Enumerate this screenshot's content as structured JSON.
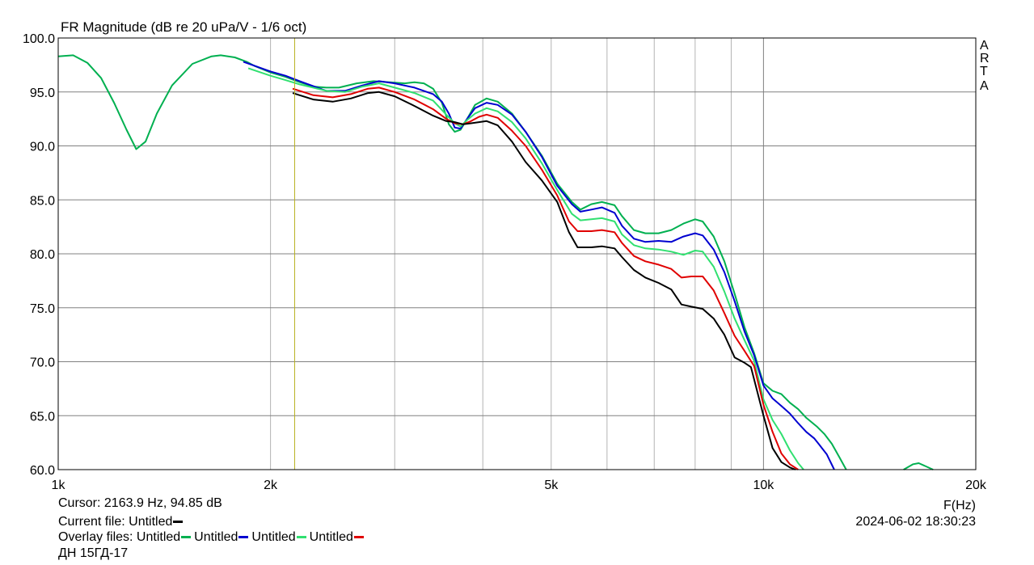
{
  "chart_data": {
    "type": "line",
    "title": "FR Magnitude (dB re 20 uPa/V - 1/6 oct)",
    "xlabel": "F(Hz)",
    "xscale": "log",
    "xlim": [
      1000,
      20000
    ],
    "ylim": [
      60,
      100
    ],
    "x_ticks": [
      {
        "value": 1000,
        "label": "1k"
      },
      {
        "value": 2000,
        "label": "2k"
      },
      {
        "value": 5000,
        "label": "5k"
      },
      {
        "value": 10000,
        "label": "10k"
      },
      {
        "value": 20000,
        "label": "20k"
      }
    ],
    "y_ticks": [
      {
        "value": 100,
        "label": "100.0"
      },
      {
        "value": 95,
        "label": "95.0"
      },
      {
        "value": 90,
        "label": "90.0"
      },
      {
        "value": 85,
        "label": "85.0"
      },
      {
        "value": 80,
        "label": "80.0"
      },
      {
        "value": 75,
        "label": "75.0"
      },
      {
        "value": 70,
        "label": "70.0"
      },
      {
        "value": 65,
        "label": "65.0"
      },
      {
        "value": 60,
        "label": "60.0"
      }
    ],
    "grid": true,
    "cursor": {
      "x": 2163.9,
      "y": 94.85
    },
    "series": [
      {
        "name": "Untitled",
        "color": "#00b050",
        "points": [
          [
            1000,
            98.3
          ],
          [
            1050,
            98.4
          ],
          [
            1100,
            97.7
          ],
          [
            1150,
            96.3
          ],
          [
            1200,
            94.0
          ],
          [
            1250,
            91.5
          ],
          [
            1290,
            89.7
          ],
          [
            1330,
            90.4
          ],
          [
            1380,
            93.0
          ],
          [
            1450,
            95.6
          ],
          [
            1550,
            97.6
          ],
          [
            1650,
            98.3
          ],
          [
            1700,
            98.4
          ],
          [
            1780,
            98.2
          ],
          [
            1850,
            97.8
          ],
          [
            1900,
            97.4
          ],
          [
            2000,
            96.8
          ],
          [
            2100,
            96.4
          ],
          [
            2200,
            95.9
          ],
          [
            2300,
            95.5
          ],
          [
            2400,
            95.4
          ],
          [
            2500,
            95.4
          ],
          [
            2650,
            95.8
          ],
          [
            2800,
            96.0
          ],
          [
            2950,
            95.9
          ],
          [
            3100,
            95.8
          ],
          [
            3200,
            95.9
          ],
          [
            3300,
            95.8
          ],
          [
            3400,
            95.3
          ],
          [
            3500,
            94.0
          ],
          [
            3580,
            92.0
          ],
          [
            3650,
            91.3
          ],
          [
            3720,
            91.5
          ],
          [
            3800,
            92.5
          ],
          [
            3900,
            93.8
          ],
          [
            4050,
            94.4
          ],
          [
            4200,
            94.1
          ],
          [
            4400,
            93.0
          ],
          [
            4600,
            91.3
          ],
          [
            4850,
            89.1
          ],
          [
            5100,
            86.5
          ],
          [
            5350,
            84.8
          ],
          [
            5500,
            84.1
          ],
          [
            5700,
            84.6
          ],
          [
            5900,
            84.8
          ],
          [
            6150,
            84.5
          ],
          [
            6300,
            83.5
          ],
          [
            6550,
            82.2
          ],
          [
            6800,
            81.9
          ],
          [
            7100,
            81.9
          ],
          [
            7400,
            82.2
          ],
          [
            7700,
            82.8
          ],
          [
            8000,
            83.2
          ],
          [
            8200,
            83.0
          ],
          [
            8500,
            81.6
          ],
          [
            8800,
            79.3
          ],
          [
            9100,
            76.3
          ],
          [
            9400,
            73.2
          ],
          [
            9700,
            70.8
          ],
          [
            10000,
            68.0
          ],
          [
            10300,
            67.3
          ],
          [
            10600,
            67.0
          ],
          [
            10900,
            66.2
          ],
          [
            11200,
            65.6
          ],
          [
            11500,
            64.8
          ],
          [
            11900,
            64.0
          ],
          [
            12200,
            63.3
          ],
          [
            12500,
            62.4
          ],
          [
            12800,
            61.2
          ],
          [
            13100,
            60.0
          ]
        ]
      },
      {
        "name": "Untitled",
        "color": "#0000d0",
        "points": [
          [
            1830,
            97.8
          ],
          [
            2000,
            96.9
          ],
          [
            2100,
            96.5
          ],
          [
            2200,
            96.0
          ],
          [
            2400,
            95.1
          ],
          [
            2550,
            95.1
          ],
          [
            2700,
            95.6
          ],
          [
            2850,
            96.0
          ],
          [
            3000,
            95.8
          ],
          [
            3200,
            95.4
          ],
          [
            3400,
            94.8
          ],
          [
            3500,
            94.1
          ],
          [
            3580,
            93.0
          ],
          [
            3650,
            91.7
          ],
          [
            3720,
            91.6
          ],
          [
            3800,
            92.5
          ],
          [
            3900,
            93.5
          ],
          [
            4050,
            94.0
          ],
          [
            4200,
            93.8
          ],
          [
            4400,
            92.9
          ],
          [
            4600,
            91.3
          ],
          [
            4850,
            89.0
          ],
          [
            5100,
            86.3
          ],
          [
            5350,
            84.6
          ],
          [
            5500,
            83.9
          ],
          [
            5700,
            84.1
          ],
          [
            5900,
            84.3
          ],
          [
            6150,
            83.8
          ],
          [
            6300,
            82.6
          ],
          [
            6550,
            81.4
          ],
          [
            6800,
            81.1
          ],
          [
            7100,
            81.2
          ],
          [
            7400,
            81.1
          ],
          [
            7700,
            81.6
          ],
          [
            8000,
            81.9
          ],
          [
            8200,
            81.7
          ],
          [
            8500,
            80.4
          ],
          [
            8800,
            78.3
          ],
          [
            9100,
            75.6
          ],
          [
            9400,
            72.8
          ],
          [
            9700,
            70.6
          ],
          [
            10000,
            67.8
          ],
          [
            10300,
            66.6
          ],
          [
            10600,
            65.9
          ],
          [
            10900,
            65.2
          ],
          [
            11200,
            64.3
          ],
          [
            11500,
            63.5
          ],
          [
            11800,
            62.9
          ],
          [
            12000,
            62.3
          ],
          [
            12300,
            61.4
          ],
          [
            12600,
            60.0
          ]
        ]
      },
      {
        "name": "Untitled",
        "color": "#30e070",
        "points": [
          [
            1860,
            97.2
          ],
          [
            2000,
            96.5
          ],
          [
            2100,
            96.1
          ],
          [
            2200,
            95.7
          ],
          [
            2400,
            95.1
          ],
          [
            2550,
            95.0
          ],
          [
            2700,
            95.5
          ],
          [
            2850,
            95.8
          ],
          [
            3000,
            95.4
          ],
          [
            3200,
            94.9
          ],
          [
            3400,
            94.2
          ],
          [
            3550,
            92.9
          ],
          [
            3650,
            92.1
          ],
          [
            3720,
            91.8
          ],
          [
            3800,
            92.4
          ],
          [
            3900,
            93.0
          ],
          [
            4050,
            93.5
          ],
          [
            4200,
            93.2
          ],
          [
            4400,
            92.2
          ],
          [
            4600,
            90.7
          ],
          [
            4850,
            88.4
          ],
          [
            5100,
            85.9
          ],
          [
            5350,
            83.7
          ],
          [
            5500,
            83.1
          ],
          [
            5700,
            83.2
          ],
          [
            5900,
            83.3
          ],
          [
            6150,
            83.0
          ],
          [
            6300,
            81.8
          ],
          [
            6550,
            80.8
          ],
          [
            6800,
            80.5
          ],
          [
            7100,
            80.4
          ],
          [
            7400,
            80.2
          ],
          [
            7700,
            79.9
          ],
          [
            8000,
            80.3
          ],
          [
            8200,
            80.2
          ],
          [
            8500,
            78.8
          ],
          [
            8800,
            76.5
          ],
          [
            9100,
            74.0
          ],
          [
            9400,
            72.0
          ],
          [
            9700,
            70.1
          ],
          [
            10000,
            66.5
          ],
          [
            10300,
            64.6
          ],
          [
            10600,
            63.3
          ],
          [
            10900,
            61.8
          ],
          [
            11200,
            60.6
          ],
          [
            11400,
            60.0
          ]
        ]
      },
      {
        "name": "Untitled",
        "color": "#e00000",
        "points": [
          [
            2150,
            95.3
          ],
          [
            2200,
            95.1
          ],
          [
            2300,
            94.7
          ],
          [
            2450,
            94.5
          ],
          [
            2600,
            94.8
          ],
          [
            2750,
            95.3
          ],
          [
            2850,
            95.4
          ],
          [
            3000,
            95.0
          ],
          [
            3200,
            94.3
          ],
          [
            3400,
            93.4
          ],
          [
            3550,
            92.5
          ],
          [
            3650,
            92.1
          ],
          [
            3750,
            92.0
          ],
          [
            3850,
            92.3
          ],
          [
            3950,
            92.7
          ],
          [
            4050,
            92.9
          ],
          [
            4200,
            92.6
          ],
          [
            4400,
            91.4
          ],
          [
            4600,
            90.0
          ],
          [
            4850,
            87.8
          ],
          [
            5100,
            85.4
          ],
          [
            5300,
            83.0
          ],
          [
            5450,
            82.1
          ],
          [
            5700,
            82.1
          ],
          [
            5900,
            82.2
          ],
          [
            6150,
            82.0
          ],
          [
            6300,
            81.0
          ],
          [
            6550,
            79.8
          ],
          [
            6800,
            79.3
          ],
          [
            7100,
            79.0
          ],
          [
            7400,
            78.6
          ],
          [
            7650,
            77.8
          ],
          [
            7900,
            77.9
          ],
          [
            8200,
            77.9
          ],
          [
            8500,
            76.6
          ],
          [
            8800,
            74.5
          ],
          [
            9100,
            72.4
          ],
          [
            9400,
            71.0
          ],
          [
            9700,
            69.6
          ],
          [
            10000,
            66.0
          ],
          [
            10300,
            63.5
          ],
          [
            10600,
            61.5
          ],
          [
            10900,
            60.5
          ],
          [
            11200,
            60.0
          ]
        ]
      },
      {
        "name": "Untitled",
        "color": "#000000",
        "points": [
          [
            2150,
            94.9
          ],
          [
            2200,
            94.7
          ],
          [
            2300,
            94.3
          ],
          [
            2450,
            94.1
          ],
          [
            2600,
            94.4
          ],
          [
            2750,
            94.9
          ],
          [
            2850,
            95.0
          ],
          [
            3000,
            94.6
          ],
          [
            3200,
            93.7
          ],
          [
            3400,
            92.8
          ],
          [
            3550,
            92.3
          ],
          [
            3650,
            92.2
          ],
          [
            3750,
            92.0
          ],
          [
            3850,
            92.1
          ],
          [
            3950,
            92.2
          ],
          [
            4050,
            92.3
          ],
          [
            4200,
            91.9
          ],
          [
            4400,
            90.4
          ],
          [
            4600,
            88.5
          ],
          [
            4850,
            86.8
          ],
          [
            5100,
            84.8
          ],
          [
            5300,
            82.0
          ],
          [
            5450,
            80.6
          ],
          [
            5700,
            80.6
          ],
          [
            5900,
            80.7
          ],
          [
            6150,
            80.5
          ],
          [
            6300,
            79.7
          ],
          [
            6550,
            78.5
          ],
          [
            6800,
            77.8
          ],
          [
            7100,
            77.3
          ],
          [
            7400,
            76.7
          ],
          [
            7650,
            75.3
          ],
          [
            7900,
            75.1
          ],
          [
            8200,
            74.9
          ],
          [
            8500,
            74.0
          ],
          [
            8800,
            72.5
          ],
          [
            9100,
            70.4
          ],
          [
            9400,
            69.9
          ],
          [
            9600,
            69.5
          ],
          [
            10000,
            65.0
          ],
          [
            10300,
            62.0
          ],
          [
            10600,
            60.7
          ],
          [
            10900,
            60.2
          ],
          [
            11100,
            60.0
          ]
        ]
      },
      {
        "name": "Untitled",
        "color": "#00b050",
        "points": [
          [
            15800,
            60.0
          ],
          [
            16300,
            60.5
          ],
          [
            16600,
            60.6
          ],
          [
            17000,
            60.3
          ],
          [
            17400,
            60.0
          ]
        ]
      }
    ]
  },
  "corner_label": [
    "A",
    "R",
    "T",
    "A"
  ],
  "footer": {
    "cursor_text": "Cursor: 2163.9 Hz, 94.85 dB",
    "current_file_label": "Current file: ",
    "current_file_name": "Untitled",
    "current_file_color": "#000000",
    "overlay_label": "Overlay files: ",
    "overlays": [
      {
        "name": "Untitled",
        "color": "#00b050"
      },
      {
        "name": "Untitled",
        "color": "#0000d0"
      },
      {
        "name": "Untitled",
        "color": "#30e070"
      },
      {
        "name": "Untitled",
        "color": "#e00000"
      }
    ],
    "device_name": "ДН 15ГД-17",
    "timestamp": "2024-06-02   18:30:23"
  }
}
